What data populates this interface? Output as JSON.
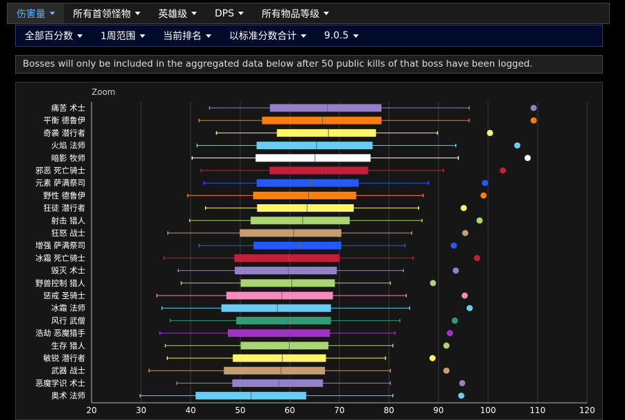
{
  "topnav": {
    "items": [
      {
        "label": "伤害量",
        "active": true
      },
      {
        "label": "所有首领怪物",
        "active": false
      },
      {
        "label": "英雄级",
        "active": false
      },
      {
        "label": "DPS",
        "active": false
      },
      {
        "label": "所有物品等级",
        "active": false
      }
    ]
  },
  "subnav": {
    "items": [
      {
        "label": "全部百分数"
      },
      {
        "label": "1周范围"
      },
      {
        "label": "当前排名"
      },
      {
        "label": "以标准分数合计"
      },
      {
        "label": "9.0.5"
      }
    ]
  },
  "notice": "Bosses will only be included in the aggregated data below after 50 public kills of that boss have been logged.",
  "zoom_label": "Zoom",
  "chart_data": {
    "type": "boxplot",
    "orientation": "horizontal",
    "xlim": [
      20,
      120
    ],
    "xticks": [
      20,
      30,
      40,
      50,
      60,
      70,
      80,
      90,
      100,
      110,
      120
    ],
    "grid": true,
    "categories": [
      "痛苦 术士",
      "平衡 德鲁伊",
      "奇袭 潜行者",
      "火焰 法师",
      "暗影 牧师",
      "邪恶 死亡骑士",
      "元素 萨满祭司",
      "野性 德鲁伊",
      "狂徒 潜行者",
      "射击 猎人",
      "狂怒 战士",
      "增强 萨满祭司",
      "冰霜 死亡骑士",
      "毁灭 术士",
      "野兽控制 猎人",
      "惩戒 圣骑士",
      "冰霜 法师",
      "风行 武僧",
      "浩劫 恶魔猎手",
      "生存 猎人",
      "敏锐 潜行者",
      "武器 战士",
      "恶魔学识 术士",
      "奥术 法师"
    ],
    "series": [
      {
        "min": 43.8,
        "q1": 56.0,
        "median": 67.6,
        "q3": 78.5,
        "max": 96.2,
        "top": 109.2,
        "color": "#9482c9"
      },
      {
        "min": 41.7,
        "q1": 54.4,
        "median": 66.6,
        "q3": 78.5,
        "max": 96.2,
        "top": 109.2,
        "color": "#ff7d0a"
      },
      {
        "min": 45.2,
        "q1": 57.4,
        "median": 67.8,
        "q3": 77.4,
        "max": 89.8,
        "top": 100.4,
        "color": "#fff569"
      },
      {
        "min": 41.3,
        "q1": 53.3,
        "median": 65.4,
        "q3": 76.7,
        "max": 93.5,
        "top": 105.9,
        "color": "#69ccf0"
      },
      {
        "min": 40.3,
        "q1": 53.1,
        "median": 65.1,
        "q3": 76.3,
        "max": 94.0,
        "top": 108.0,
        "color": "#ffffff"
      },
      {
        "min": 42.1,
        "q1": 55.9,
        "median": 66.5,
        "q3": 75.8,
        "max": 91.0,
        "top": 103.0,
        "color": "#c41e3a"
      },
      {
        "min": 42.7,
        "q1": 53.3,
        "median": 64.1,
        "q3": 73.9,
        "max": 88.0,
        "top": 99.4,
        "color": "#2459ff"
      },
      {
        "min": 39.4,
        "q1": 52.6,
        "median": 63.8,
        "q3": 73.4,
        "max": 86.9,
        "top": 99.1,
        "color": "#ff7d0a"
      },
      {
        "min": 43.0,
        "q1": 53.4,
        "median": 63.5,
        "q3": 72.9,
        "max": 86.0,
        "top": 95.1,
        "color": "#fff569"
      },
      {
        "min": 39.8,
        "q1": 52.1,
        "median": 62.6,
        "q3": 72.1,
        "max": 86.7,
        "top": 98.3,
        "color": "#abd473"
      },
      {
        "min": 35.4,
        "q1": 49.9,
        "median": 60.8,
        "q3": 70.4,
        "max": 84.6,
        "top": 95.4,
        "color": "#c79c6e"
      },
      {
        "min": 41.7,
        "q1": 52.7,
        "median": 61.9,
        "q3": 70.4,
        "max": 83.2,
        "top": 93.1,
        "color": "#2459ff"
      },
      {
        "min": 34.6,
        "q1": 48.8,
        "median": 59.8,
        "q3": 70.0,
        "max": 84.9,
        "top": 97.8,
        "color": "#c41e3a"
      },
      {
        "min": 37.5,
        "q1": 48.9,
        "median": 59.7,
        "q3": 69.5,
        "max": 82.9,
        "top": 93.5,
        "color": "#9482c9"
      },
      {
        "min": 38.1,
        "q1": 50.1,
        "median": 60.4,
        "q3": 69.1,
        "max": 80.3,
        "top": 88.9,
        "color": "#abd473"
      },
      {
        "min": 33.2,
        "q1": 47.2,
        "median": 58.4,
        "q3": 68.7,
        "max": 83.5,
        "top": 95.3,
        "color": "#f58cba"
      },
      {
        "min": 34.2,
        "q1": 46.2,
        "median": 57.5,
        "q3": 68.3,
        "max": 84.2,
        "top": 96.3,
        "color": "#69ccf0"
      },
      {
        "min": 35.9,
        "q1": 49.2,
        "median": 59.6,
        "q3": 68.3,
        "max": 82.2,
        "top": 93.3,
        "color": "#2e9e76"
      },
      {
        "min": 33.8,
        "q1": 47.5,
        "median": 58.5,
        "q3": 68.1,
        "max": 81.2,
        "top": 92.3,
        "color": "#a330c9"
      },
      {
        "min": 34.9,
        "q1": 50.1,
        "median": 59.9,
        "q3": 67.8,
        "max": 80.8,
        "top": 91.6,
        "color": "#abd473"
      },
      {
        "min": 35.3,
        "q1": 48.5,
        "median": 58.5,
        "q3": 67.3,
        "max": 79.3,
        "top": 88.8,
        "color": "#fff569"
      },
      {
        "min": 31.6,
        "q1": 46.7,
        "median": 58.2,
        "q3": 67.1,
        "max": 80.3,
        "top": 91.6,
        "color": "#c79c6e"
      },
      {
        "min": 37.2,
        "q1": 48.4,
        "median": 57.8,
        "q3": 66.7,
        "max": 80.3,
        "top": 94.8,
        "color": "#9482c9"
      },
      {
        "min": 29.8,
        "q1": 41.0,
        "median": 52.2,
        "q3": 63.3,
        "max": 80.8,
        "top": 94.6,
        "color": "#69ccf0"
      }
    ]
  }
}
